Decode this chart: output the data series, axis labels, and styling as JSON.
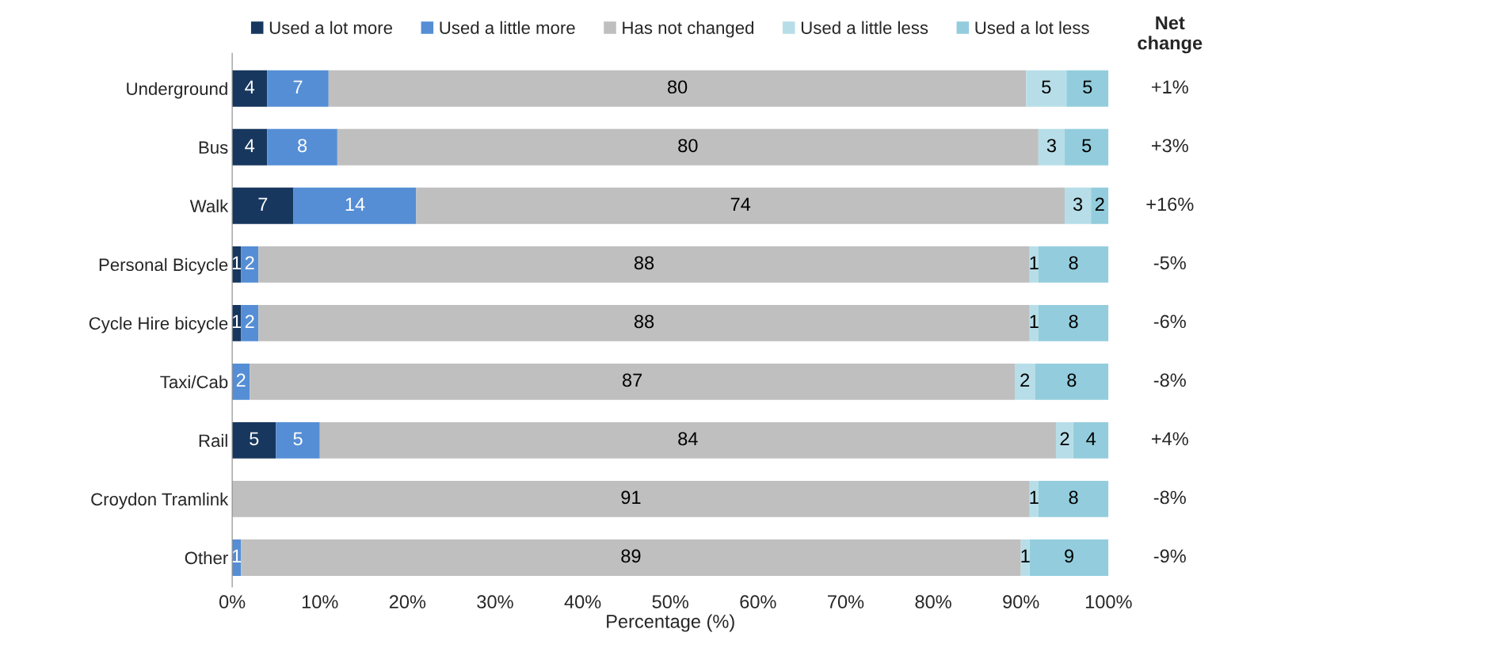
{
  "chart_data": {
    "type": "bar",
    "orientation": "horizontal",
    "stacked": true,
    "categories": [
      "Underground",
      "Bus",
      "Walk",
      "Personal Bicycle",
      "Cycle Hire bicycle",
      "Taxi/Cab",
      "Rail",
      "Croydon Tramlink",
      "Other"
    ],
    "series": [
      {
        "name": "Used a lot more",
        "color": "#17375e",
        "values": [
          4,
          4,
          7,
          1,
          1,
          0,
          5,
          0,
          0
        ],
        "value_labels": [
          "4",
          "4",
          "7",
          "1",
          "1",
          null,
          "5",
          null,
          null
        ]
      },
      {
        "name": "Used a little more",
        "color": "#558ed5",
        "values": [
          7,
          8,
          14,
          2,
          2,
          2,
          5,
          0,
          1
        ],
        "value_labels": [
          "7",
          "8",
          "14",
          "2",
          "2",
          "2",
          "5",
          null,
          "1"
        ]
      },
      {
        "name": "Has not changed",
        "color": "#bfbfbf",
        "values": [
          79.6,
          80,
          74,
          88,
          88,
          87.3,
          84,
          91,
          89
        ],
        "value_labels": [
          "80",
          "80",
          "74",
          "88",
          "88",
          "87",
          "84",
          "91",
          "89"
        ]
      },
      {
        "name": "Used a little less",
        "color": "#b7dee8",
        "values": [
          4.6,
          3,
          3,
          1,
          1,
          2.3,
          2,
          1,
          1
        ],
        "value_labels": [
          "5",
          "3",
          "3",
          "1",
          "1",
          "2",
          "2",
          "1",
          "1"
        ]
      },
      {
        "name": "Used a lot less",
        "color": "#93cddd",
        "values": [
          4.8,
          5,
          2,
          8,
          8,
          8.4,
          4,
          8,
          9
        ],
        "value_labels": [
          "5",
          "5",
          "2",
          "8",
          "8",
          "8",
          "4",
          "8",
          "9"
        ]
      }
    ],
    "xlim": [
      0,
      100
    ],
    "xticks": [
      {
        "value": 0,
        "label": "0%"
      },
      {
        "value": 10,
        "label": "10%"
      },
      {
        "value": 20,
        "label": "20%"
      },
      {
        "value": 30,
        "label": "30%"
      },
      {
        "value": 40,
        "label": "40%"
      },
      {
        "value": 50,
        "label": "50%"
      },
      {
        "value": 60,
        "label": "60%"
      },
      {
        "value": 70,
        "label": "70%"
      },
      {
        "value": 80,
        "label": "80%"
      },
      {
        "value": 90,
        "label": "90%"
      },
      {
        "value": 100,
        "label": "100%"
      }
    ],
    "xlabel": "Percentage (%)",
    "legend": "top",
    "grid": false,
    "annotations": [
      "Net\nchange",
      "+1%",
      "+3%",
      "+16%",
      "-5%",
      "-6%",
      "-8%",
      "+4%",
      "-8%",
      "-9%"
    ]
  }
}
